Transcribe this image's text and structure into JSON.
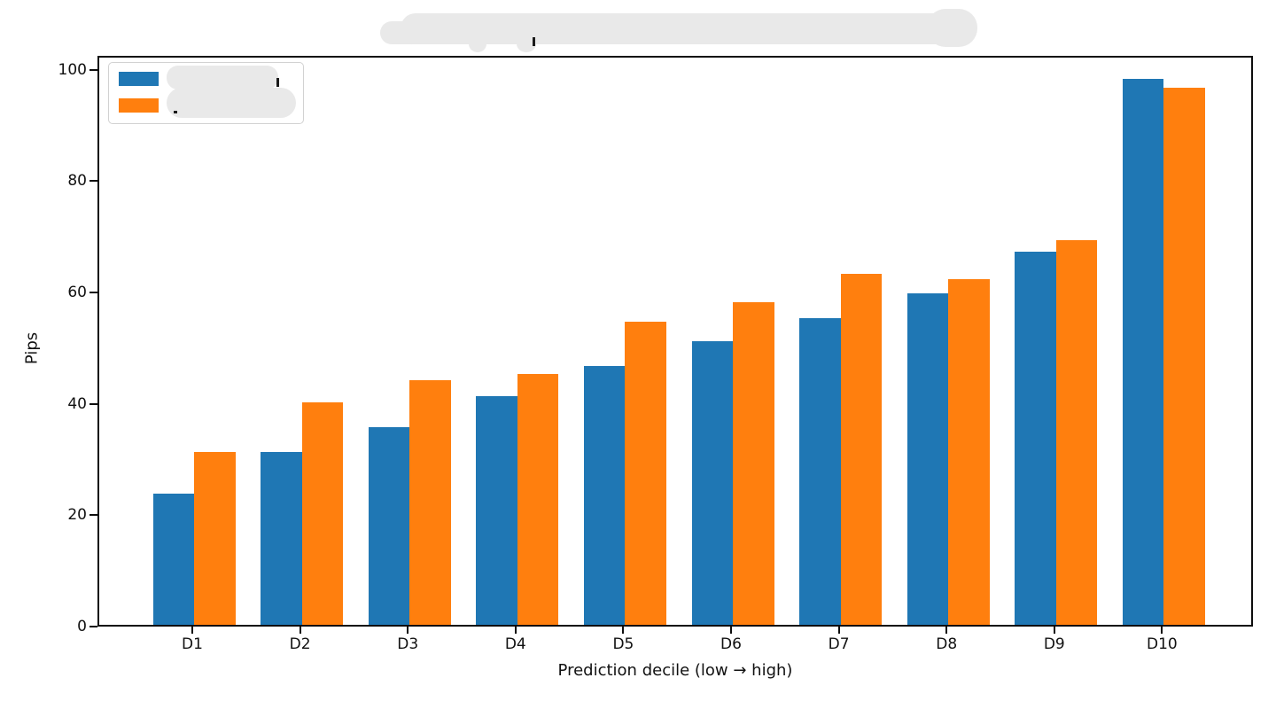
{
  "figure": {
    "background": "#ffffff"
  },
  "title": {
    "redacted": true
  },
  "legend": {
    "position": "upper left",
    "entries": [
      {
        "color": "#1f77b4",
        "label_redacted": true
      },
      {
        "color": "#ff7f0e",
        "label_redacted": true
      }
    ]
  },
  "chart_data": {
    "type": "bar",
    "categories": [
      "D1",
      "D2",
      "D3",
      "D4",
      "D5",
      "D6",
      "D7",
      "D8",
      "D9",
      "D10"
    ],
    "series": [
      {
        "name_redacted": true,
        "color": "#1f77b4",
        "values": [
          23.5,
          31,
          35.5,
          41,
          46.5,
          51,
          55,
          59.5,
          67,
          98
        ]
      },
      {
        "name_redacted": true,
        "color": "#ff7f0e",
        "values": [
          31,
          40,
          44,
          45,
          54.5,
          58,
          63,
          62,
          69,
          96.5
        ]
      }
    ],
    "title_redacted": true,
    "xlabel": "Prediction decile (low → high)",
    "ylabel": "Pips",
    "yticks": [
      0,
      20,
      40,
      60,
      80,
      100
    ],
    "ylim": [
      0,
      102.5
    ],
    "grid": false,
    "legend_position": "upper left"
  }
}
